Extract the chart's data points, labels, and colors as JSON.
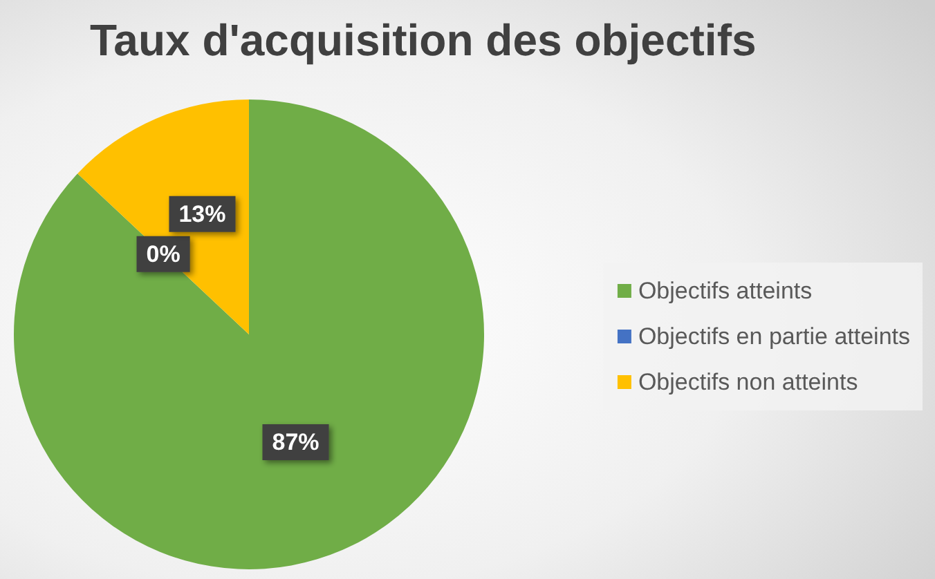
{
  "chart_data": {
    "type": "pie",
    "title": "Taux d'acquisition des objectifs",
    "categories": [
      "Objectifs atteints",
      "Objectifs en partie atteints",
      "Objectifs non atteints"
    ],
    "values": [
      87,
      0,
      13
    ],
    "colors": [
      "#70ad47",
      "#4472c4",
      "#ffc000"
    ],
    "value_labels": [
      "87%",
      "0%",
      "13%"
    ],
    "legend": "right"
  }
}
